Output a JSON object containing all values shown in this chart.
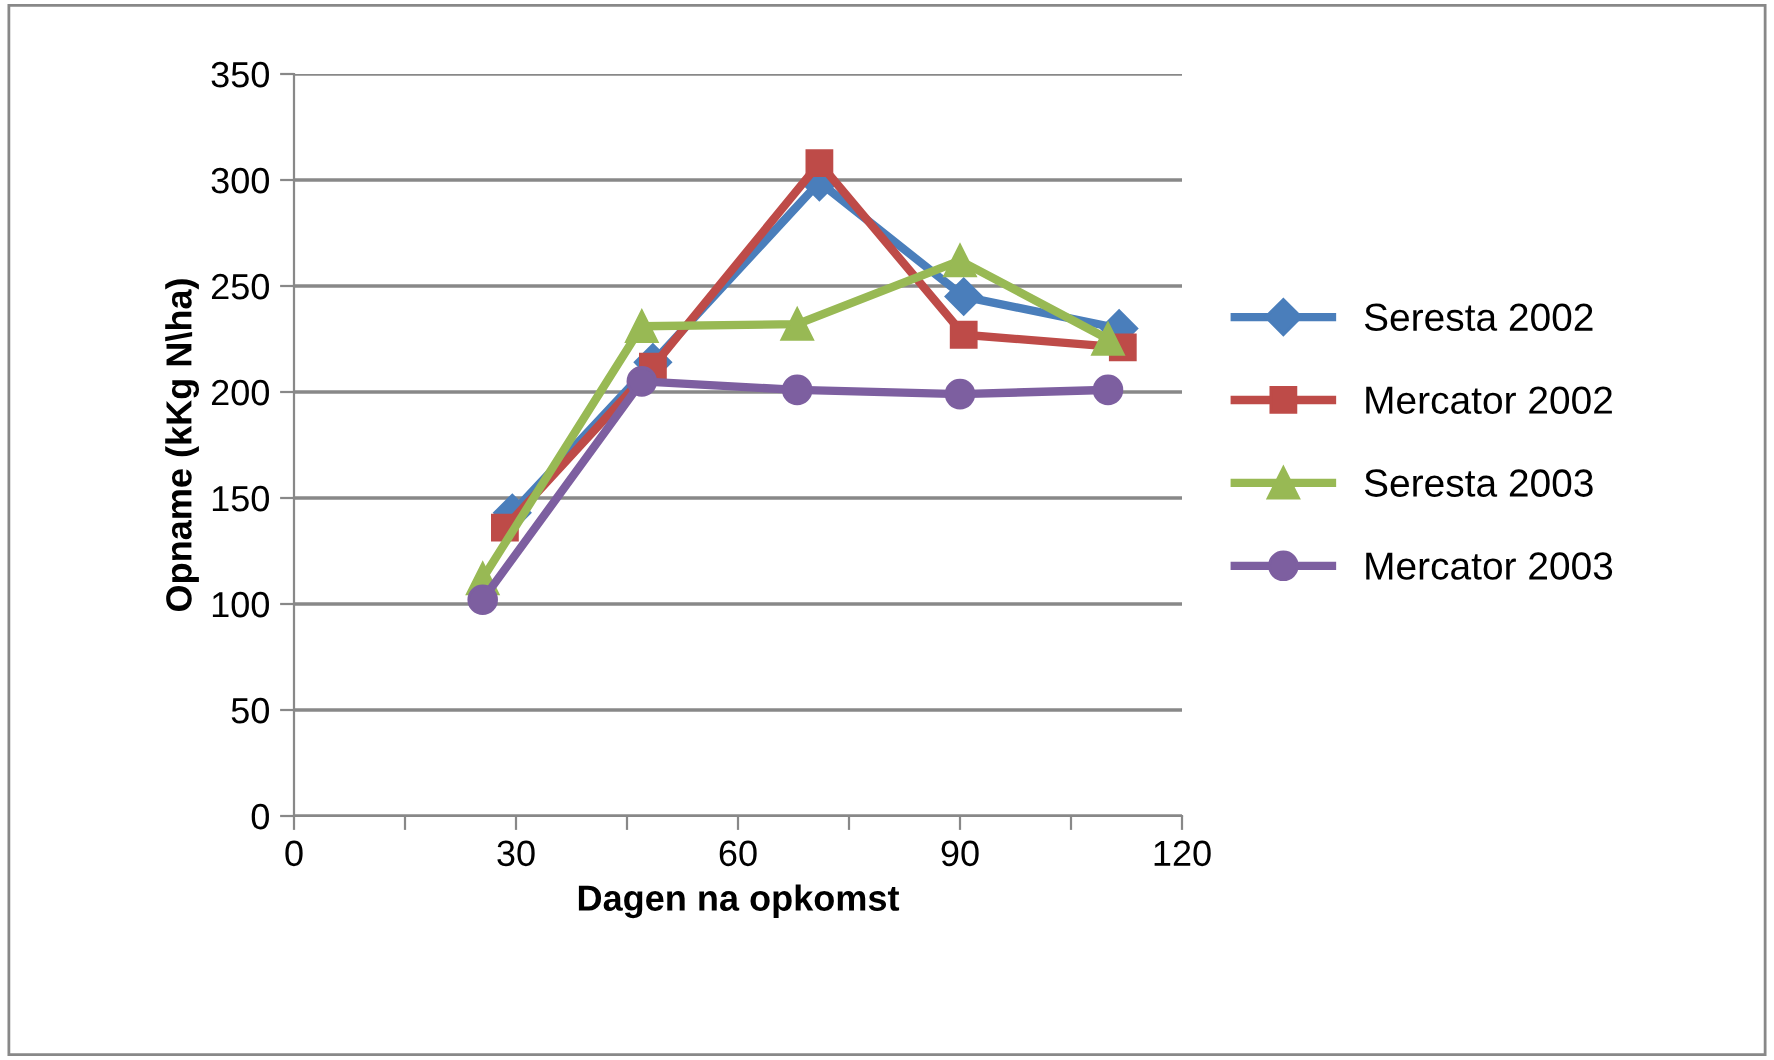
{
  "chart_data": {
    "type": "line",
    "xlabel": "Dagen na opkomst",
    "ylabel": "Opname (kKg N\\ha)",
    "series": [
      {
        "name": "Seresta 2002",
        "color": "#4a7ebb",
        "marker": "diamond",
        "x": [
          29.5,
          48.5,
          71,
          90.5,
          111.5
        ],
        "values": [
          143,
          214,
          299,
          245,
          230
        ]
      },
      {
        "name": "Mercator 2002",
        "color": "#be4b48",
        "marker": "square",
        "x": [
          28.5,
          48.5,
          71,
          90.5,
          112
        ],
        "values": [
          136,
          212,
          308,
          227,
          221
        ]
      },
      {
        "name": "Seresta 2003",
        "color": "#98b954",
        "marker": "triangle",
        "x": [
          25.5,
          47,
          68,
          90,
          110
        ],
        "values": [
          112,
          231,
          232,
          262,
          225
        ]
      },
      {
        "name": "Mercator 2003",
        "color": "#7d5fa0",
        "marker": "circle",
        "x": [
          25.5,
          47,
          68,
          90,
          110
        ],
        "values": [
          102,
          205,
          201,
          199,
          201
        ]
      }
    ],
    "xlim": [
      0,
      120
    ],
    "xticks": [
      0,
      {
        "value": 15,
        "label": null
      },
      30,
      {
        "value": 45,
        "label": null
      },
      60,
      {
        "value": 75,
        "label": null
      },
      90,
      {
        "value": 105,
        "label": null
      },
      120
    ],
    "ylim": [
      0,
      350
    ],
    "yticks": [
      0,
      50,
      100,
      150,
      200,
      250,
      300,
      350
    ],
    "grid": "y",
    "legend": "right",
    "line_style": "solid"
  }
}
